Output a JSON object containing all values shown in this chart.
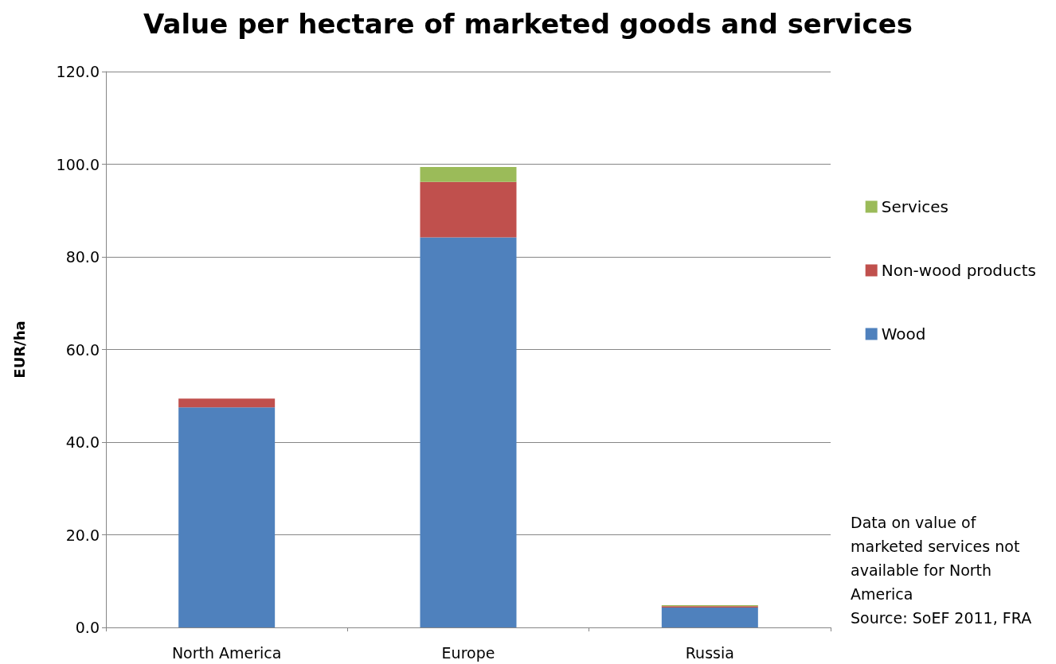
{
  "chart_data": {
    "type": "bar",
    "title": "Value per hectare of marketed goods and services",
    "ylabel": "EUR/ha",
    "categories": [
      "North America",
      "Europe",
      "Russia"
    ],
    "series": [
      {
        "name": "Wood",
        "color": "#4f81bd",
        "values": [
          47.5,
          84.2,
          4.3
        ]
      },
      {
        "name": "Non-wood products",
        "color": "#c0504d",
        "values": [
          1.9,
          12.0,
          0.3
        ]
      },
      {
        "name": "Services",
        "color": "#9bbb59",
        "values": [
          null,
          3.2,
          0.2
        ]
      }
    ],
    "stacked": true,
    "ylim": [
      0,
      120
    ],
    "yticks": [
      {
        "value": 0,
        "label": "0.0"
      },
      {
        "value": 20,
        "label": "20.0"
      },
      {
        "value": 40,
        "label": "40.0"
      },
      {
        "value": 60,
        "label": "60.0"
      },
      {
        "value": 80,
        "label": "80.0"
      },
      {
        "value": 100,
        "label": "100.0"
      },
      {
        "value": 120,
        "label": "120.0"
      }
    ],
    "grid": "y",
    "legend": "right",
    "annotations": [
      "Data on value of\nmarketed services not\navailable for North\nAmerica\nSource: SoEF 2011, FRA"
    ]
  }
}
